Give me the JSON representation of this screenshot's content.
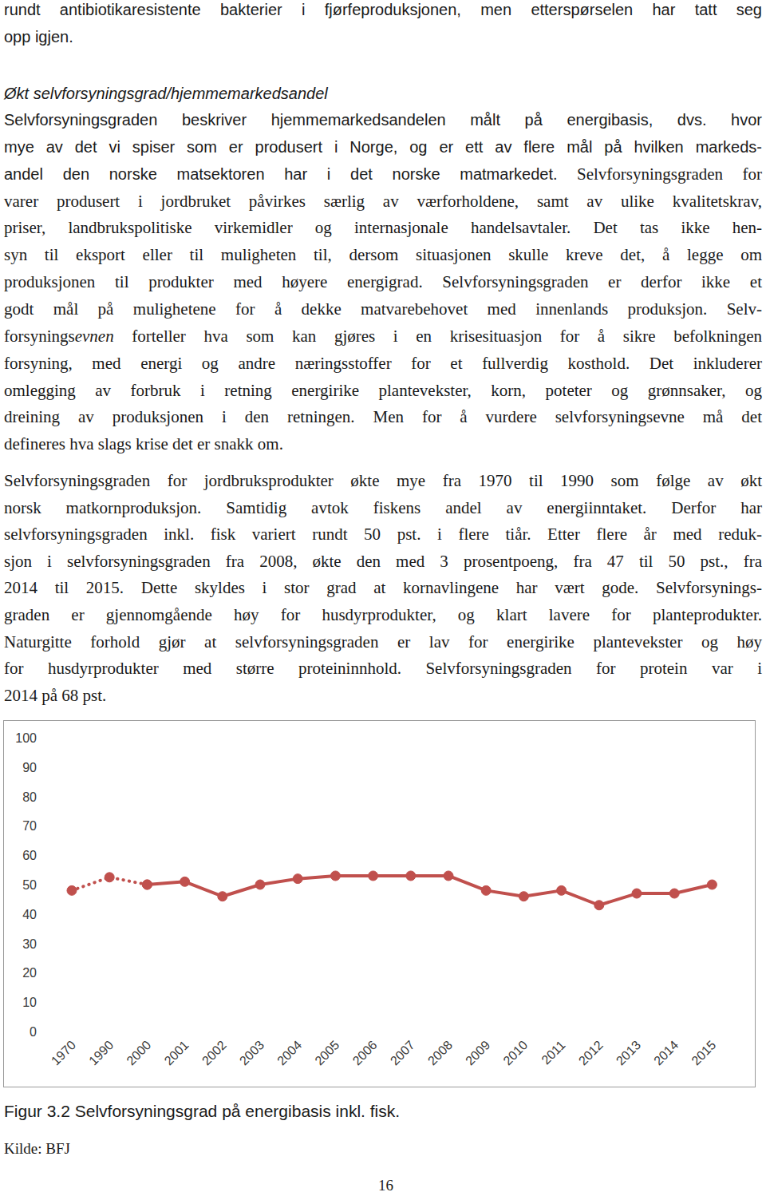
{
  "page": {
    "top_lines": [
      [
        {
          "text": "rundt antibiotikaresistente bakterier i fjørfeproduksjonen, men etterspørselen har tatt seg",
          "font": "sans"
        }
      ],
      [
        {
          "text": "opp igjen.",
          "font": "sans"
        }
      ]
    ],
    "heading": "Økt selvforsyningsgrad/hjemmemarkedsandel",
    "paragraphs": [
      [
        [
          {
            "text": "Selvforsyningsgraden beskriver hjemmemarkedsandelen målt på energibasis, dvs. hvor",
            "font": "sans"
          }
        ],
        [
          {
            "text": "mye av det vi spiser som er produsert i Norge, og er ett av flere mål på hvilken markeds-",
            "font": "sans"
          }
        ],
        [
          {
            "text": "andel den norske matsektoren har i det norske matmarkedet.",
            "font": "sans"
          },
          " Selvforsyningsgraden for"
        ],
        "varer produsert i jordbruket påvirkes særlig av værforholdene, samt av ulike kvalitetskrav,",
        "priser, landbrukspolitiske virkemidler og internasjonale handelsavtaler. Det tas ikke hen-",
        "syn til eksport eller til muligheten til, dersom situasjonen skulle kreve det, å legge om",
        "produksjonen til produkter med høyere energigrad. Selvforsyningsgraden er derfor ikke et",
        "godt mål på mulighetene for å dekke matvarebehovet med innenlands produksjon. Selv-",
        [
          "forsynings",
          {
            "text": "evnen",
            "style": "italic"
          },
          " forteller hva som kan gjøres i en krisesituasjon for å sikre befolkningen"
        ],
        "forsyning, med energi og andre næringsstoffer for et fullverdig kosthold. Det inkluderer",
        "omlegging av forbruk i retning energirike plantevekster, korn, poteter og grønnsaker, og",
        "dreining av produksjonen i den retningen. Men for å vurdere selvforsyningsevne må det",
        "defineres hva slags krise det er snakk om."
      ],
      [
        "Selvforsyningsgraden for jordbruksprodukter økte mye fra 1970 til 1990 som følge av økt",
        "norsk matkornproduksjon. Samtidig avtok fiskens andel av energiinntaket. Derfor har",
        "selvforsyningsgraden inkl. fisk variert rundt 50 pst. i flere tiår. Etter flere år med reduk-",
        "sjon i selvforsyningsgraden fra 2008, økte den med 3 prosentpoeng, fra 47 til 50 pst., fra",
        "2014 til 2015. Dette skyldes i stor grad at kornavlingene har vært gode. Selvforsynings-",
        "graden er gjennomgående høy for husdyrprodukter, og klart lavere for planteprodukter.",
        "Naturgitte forhold gjør at selvforsyningsgraden er lav for energirike plantevekster og høy",
        "for husdyrprodukter med større proteininnhold. Selvforsyningsgraden for protein var i",
        "2014 på 68 pst."
      ]
    ],
    "figure_caption": "Figur 3.2 Selvforsyningsgrad på energibasis inkl. fisk.",
    "source": "Kilde: BFJ",
    "page_number": "16"
  },
  "chart_data": {
    "type": "line",
    "categories": [
      "1970",
      "1990",
      "2000",
      "2001",
      "2002",
      "2003",
      "2004",
      "2005",
      "2006",
      "2007",
      "2008",
      "2009",
      "2010",
      "2011",
      "2012",
      "2013",
      "2014",
      "2015"
    ],
    "series": [
      {
        "color": "#c0504d",
        "line_style": "dotted",
        "marker": "circle",
        "values": [
          48,
          52.5,
          50,
          null,
          null,
          null,
          null,
          null,
          null,
          null,
          null,
          null,
          null,
          null,
          null,
          null,
          null,
          null
        ]
      },
      {
        "color": "#c0504d",
        "line_style": "solid",
        "marker": "circle",
        "values": [
          null,
          null,
          50,
          51,
          46,
          50,
          52,
          53,
          53,
          53,
          53,
          48,
          46,
          48,
          43,
          47,
          47,
          50
        ]
      }
    ],
    "ylim": [
      0,
      100
    ],
    "yticks": [
      0,
      10,
      20,
      30,
      40,
      50,
      60,
      70,
      80,
      90,
      100
    ],
    "grid": false
  }
}
